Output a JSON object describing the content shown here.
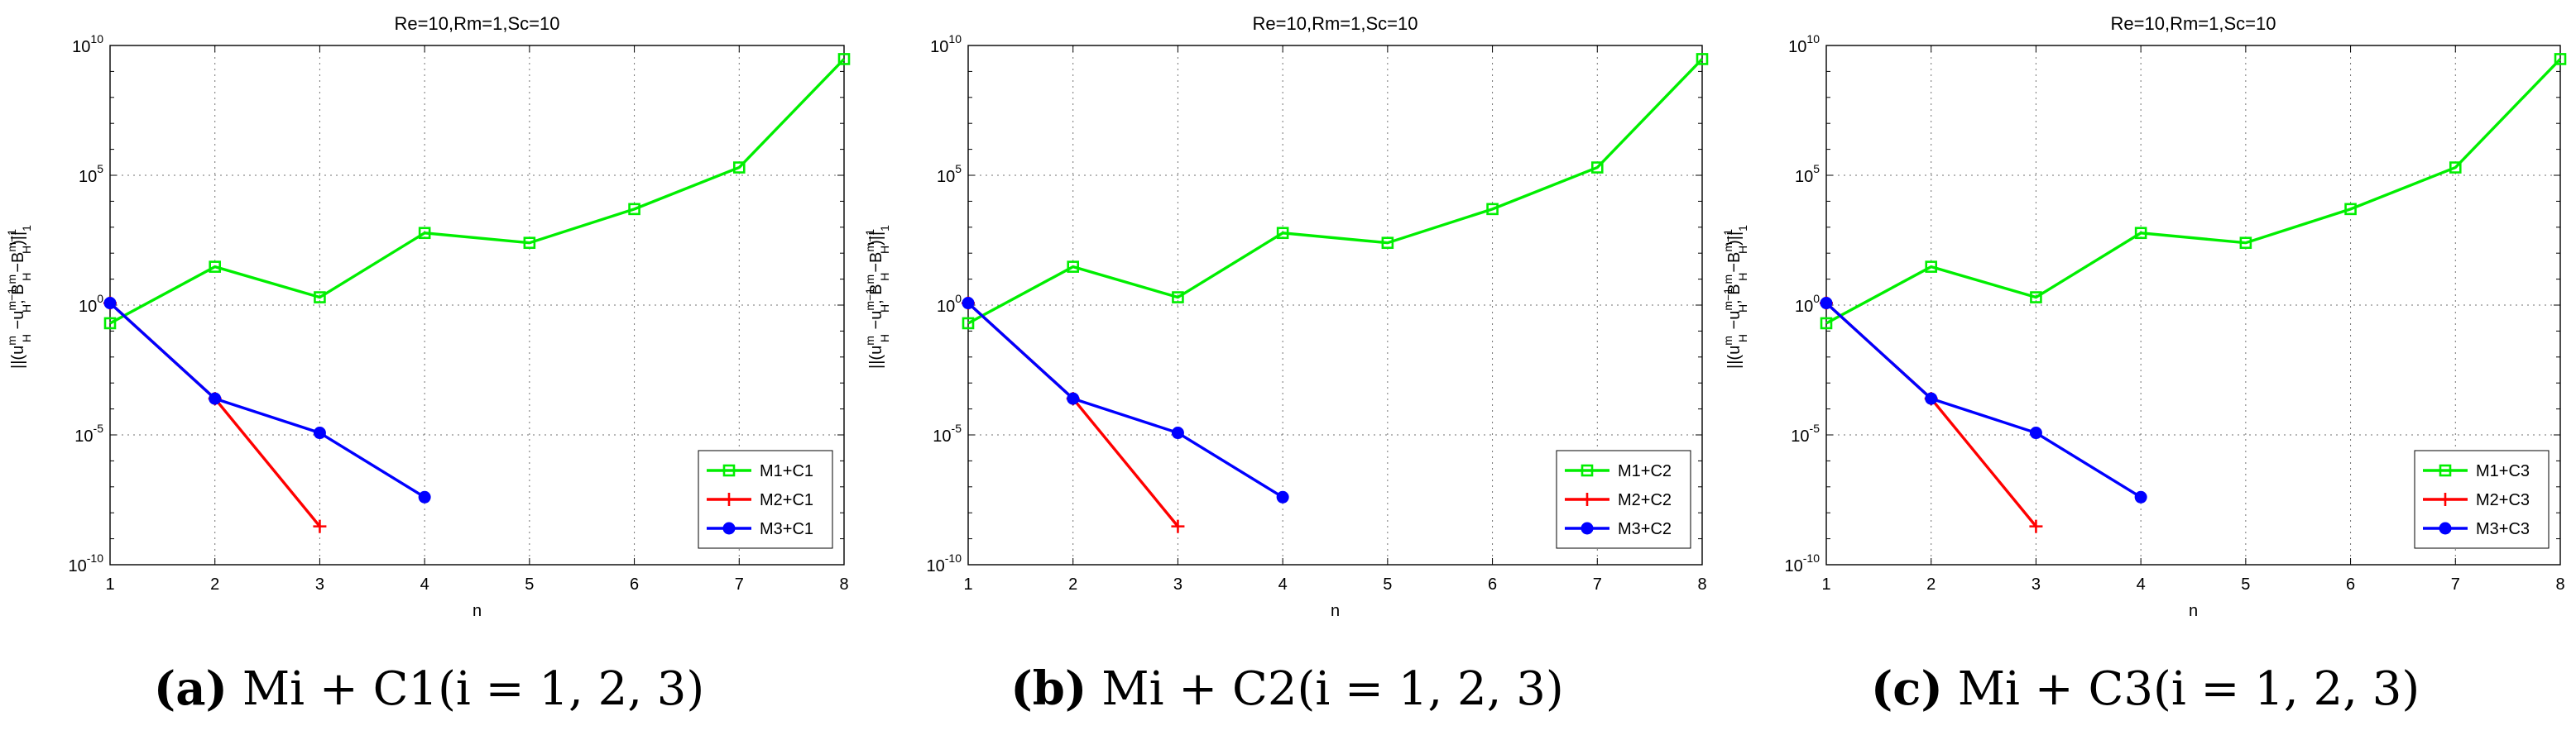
{
  "chart_data": [
    {
      "type": "line",
      "title": "Re=10,Rm=1,Sc=10",
      "xlabel": "n",
      "ylabel": "||(u_H^m - u_H^{m-1}, B_H^m - B_H^{m-1})||_1",
      "yscale": "log",
      "xlim": [
        1,
        8
      ],
      "ylim": [
        1e-10,
        10000000000.0
      ],
      "x_ticks": [
        "1",
        "2",
        "3",
        "4",
        "5",
        "6",
        "7",
        "8"
      ],
      "y_ticks": [
        {
          "base": "10",
          "exp": "10"
        },
        {
          "base": "10",
          "exp": "5"
        },
        {
          "base": "10",
          "exp": "0"
        },
        {
          "base": "10",
          "exp": "-5"
        },
        {
          "base": "10",
          "exp": "-10"
        }
      ],
      "grid": true,
      "legend_position": "bottom-right",
      "series": [
        {
          "name": "M1+C1",
          "color": "#00ee00",
          "marker": "square",
          "x": [
            1,
            2,
            3,
            4,
            5,
            6,
            7,
            8
          ],
          "y": [
            0.2,
            30,
            2,
            600,
            250,
            5000,
            200000,
            3000000000
          ]
        },
        {
          "name": "M2+C1",
          "color": "#ff0000",
          "marker": "plus",
          "x": [
            1,
            2,
            3
          ],
          "y": [
            1.2,
            0.00025,
            3e-09
          ]
        },
        {
          "name": "M3+C1",
          "color": "#0000ff",
          "marker": "circle",
          "x": [
            1,
            2,
            3,
            4
          ],
          "y": [
            1.2,
            0.00025,
            1.2e-05,
            4e-08
          ]
        }
      ]
    },
    {
      "type": "line",
      "title": "Re=10,Rm=1,Sc=10",
      "xlabel": "n",
      "ylabel": "||(u_H^m - u_H^{m-1}, B_H^m - B_H^{m-1})||_1",
      "yscale": "log",
      "xlim": [
        1,
        8
      ],
      "ylim": [
        1e-10,
        10000000000.0
      ],
      "x_ticks": [
        "1",
        "2",
        "3",
        "4",
        "5",
        "6",
        "7",
        "8"
      ],
      "y_ticks": [
        {
          "base": "10",
          "exp": "10"
        },
        {
          "base": "10",
          "exp": "5"
        },
        {
          "base": "10",
          "exp": "0"
        },
        {
          "base": "10",
          "exp": "-5"
        },
        {
          "base": "10",
          "exp": "-10"
        }
      ],
      "grid": true,
      "legend_position": "bottom-right",
      "series": [
        {
          "name": "M1+C2",
          "color": "#00ee00",
          "marker": "square",
          "x": [
            1,
            2,
            3,
            4,
            5,
            6,
            7,
            8
          ],
          "y": [
            0.2,
            30,
            2,
            600,
            250,
            5000,
            200000,
            3000000000
          ]
        },
        {
          "name": "M2+C2",
          "color": "#ff0000",
          "marker": "plus",
          "x": [
            1,
            2,
            3
          ],
          "y": [
            1.2,
            0.00025,
            3e-09
          ]
        },
        {
          "name": "M3+C2",
          "color": "#0000ff",
          "marker": "circle",
          "x": [
            1,
            2,
            3,
            4
          ],
          "y": [
            1.2,
            0.00025,
            1.2e-05,
            4e-08
          ]
        }
      ]
    },
    {
      "type": "line",
      "title": "Re=10,Rm=1,Sc=10",
      "xlabel": "n",
      "ylabel": "||(u_H^m - u_H^{m-1}, B_H^m - B_H^{m-1})||_1",
      "yscale": "log",
      "xlim": [
        1,
        8
      ],
      "ylim": [
        1e-10,
        10000000000.0
      ],
      "x_ticks": [
        "1",
        "2",
        "3",
        "4",
        "5",
        "6",
        "7",
        "8"
      ],
      "y_ticks": [
        {
          "base": "10",
          "exp": "10"
        },
        {
          "base": "10",
          "exp": "5"
        },
        {
          "base": "10",
          "exp": "0"
        },
        {
          "base": "10",
          "exp": "-5"
        },
        {
          "base": "10",
          "exp": "-10"
        }
      ],
      "grid": true,
      "legend_position": "bottom-right",
      "series": [
        {
          "name": "M1+C3",
          "color": "#00ee00",
          "marker": "square",
          "x": [
            1,
            2,
            3,
            4,
            5,
            6,
            7,
            8
          ],
          "y": [
            0.2,
            30,
            2,
            600,
            250,
            5000,
            200000,
            3000000000
          ]
        },
        {
          "name": "M2+C3",
          "color": "#ff0000",
          "marker": "plus",
          "x": [
            1,
            2,
            3
          ],
          "y": [
            1.2,
            0.00025,
            3e-09
          ]
        },
        {
          "name": "M3+C3",
          "color": "#0000ff",
          "marker": "circle",
          "x": [
            1,
            2,
            3,
            4
          ],
          "y": [
            1.2,
            0.00025,
            1.2e-05,
            4e-08
          ]
        }
      ]
    }
  ],
  "captions": [
    {
      "tag": "(a)",
      "text": "Mi + C1(i = 1, 2, 3)"
    },
    {
      "tag": "(b)",
      "text": "Mi + C2(i = 1, 2, 3)"
    },
    {
      "tag": "(c)",
      "text": "Mi + C3(i = 1, 2, 3)"
    }
  ]
}
